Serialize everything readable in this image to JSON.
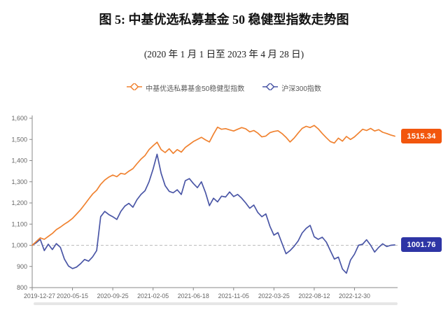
{
  "title": "图 5:  中基优选私募基金 50 稳健型指数走势图",
  "subtitle": "(2020 年 1 月 1 日至 2023 年 4 月 28 日)",
  "colors": {
    "fund_line": "#f08230",
    "fund_badge": "#f2560d",
    "csi_line": "#4a56a6",
    "csi_badge": "#2e35a5",
    "axis": "#888888",
    "tick_label": "#666666",
    "ref_line": "#bbbbbb",
    "scrollbar": "#e6e6e6"
  },
  "legend": {
    "items": [
      {
        "label": "中基优选私募基金50稳健型指数",
        "color": "#f08230"
      },
      {
        "label": "沪深300指数",
        "color": "#4a56a6"
      }
    ]
  },
  "chart_data": {
    "type": "line",
    "title": "中基优选私募基金50稳健型指数 vs 沪深300指数",
    "xlabel": "",
    "ylabel": "",
    "ylim": [
      800,
      1600
    ],
    "y_ticks": [
      800,
      900,
      1000,
      1100,
      1200,
      1300,
      1400,
      1500,
      1600
    ],
    "grid": "off",
    "legend_position": "top",
    "reference_line": {
      "value": 1000,
      "style": "dashed"
    },
    "x_tick_labels": [
      "2019-12-27",
      "2020-05-15",
      "2020-09-25",
      "2021-02-05",
      "2021-06-18",
      "2021-11-05",
      "2022-03-25",
      "2022-08-12",
      "2022-12-30"
    ],
    "x_tick_indices": [
      0,
      10,
      20,
      30,
      40,
      50,
      60,
      70,
      80
    ],
    "x_range_note": "weekly index values from 2019-12-27 to 2023-04-28, normalized to 1000",
    "series": [
      {
        "name": "中基优选私募基金50稳健型指数",
        "color": "#f08230",
        "end_label": "1515.34",
        "end_value": 1515.34,
        "values": [
          1000,
          1018,
          1035,
          1028,
          1042,
          1056,
          1074,
          1086,
          1100,
          1112,
          1127,
          1147,
          1168,
          1192,
          1218,
          1242,
          1260,
          1288,
          1308,
          1322,
          1332,
          1324,
          1340,
          1336,
          1350,
          1362,
          1385,
          1407,
          1424,
          1452,
          1470,
          1487,
          1452,
          1438,
          1456,
          1434,
          1452,
          1440,
          1462,
          1476,
          1490,
          1500,
          1510,
          1498,
          1488,
          1525,
          1558,
          1548,
          1551,
          1545,
          1540,
          1548,
          1556,
          1550,
          1536,
          1542,
          1530,
          1512,
          1516,
          1532,
          1538,
          1541,
          1528,
          1510,
          1488,
          1506,
          1530,
          1552,
          1562,
          1556,
          1566,
          1550,
          1528,
          1508,
          1490,
          1483,
          1506,
          1492,
          1514,
          1500,
          1512,
          1530,
          1548,
          1542,
          1552,
          1540,
          1546,
          1534,
          1528,
          1521,
          1515.34
        ]
      },
      {
        "name": "沪深300指数",
        "color": "#4a56a6",
        "end_label": "1001.76",
        "end_value": 1001.76,
        "values": [
          1000,
          1012,
          1028,
          975,
          1005,
          980,
          1008,
          990,
          935,
          902,
          890,
          897,
          913,
          933,
          925,
          945,
          975,
          1135,
          1160,
          1145,
          1135,
          1122,
          1160,
          1185,
          1198,
          1180,
          1215,
          1240,
          1258,
          1300,
          1360,
          1430,
          1340,
          1282,
          1255,
          1248,
          1262,
          1240,
          1305,
          1315,
          1292,
          1272,
          1300,
          1250,
          1187,
          1222,
          1205,
          1232,
          1228,
          1252,
          1230,
          1240,
          1222,
          1200,
          1175,
          1190,
          1155,
          1135,
          1148,
          1090,
          1048,
          1060,
          1010,
          960,
          975,
          995,
          1020,
          1058,
          1080,
          1094,
          1040,
          1028,
          1038,
          1015,
          975,
          935,
          944,
          888,
          868,
          930,
          958,
          1000,
          1005,
          1026,
          1000,
          968,
          990,
          1007,
          994,
          1000,
          1001.76
        ]
      }
    ]
  },
  "end_badges": {
    "fund": "1515.34",
    "csi": "1001.76"
  }
}
